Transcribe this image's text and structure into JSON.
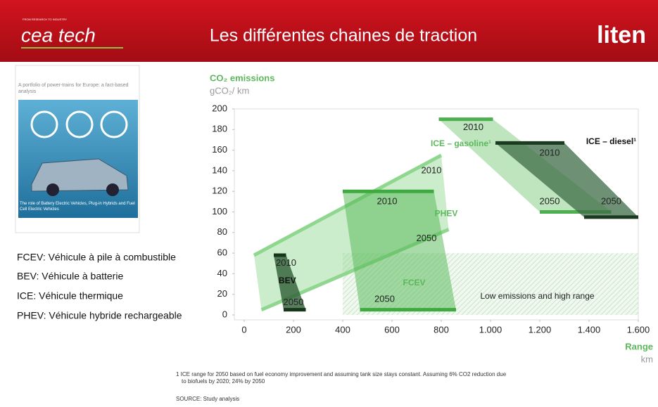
{
  "header": {
    "tagline": "FROM RESEARCH TO INDUSTRY",
    "logo_left": "cea tech",
    "title": "Les différentes chaines de traction",
    "logo_right": "liten"
  },
  "cover": {
    "title": "A portfolio of power-trains for Europe: a fact-based analysis",
    "subtitle": "The role of Battery Electric Vehicles, Plug-in Hybrids and Fuel Cell Electric Vehicles"
  },
  "definitions": [
    "FCEV: Véhicule à pile à combustible",
    "BEV: Véhicule à batterie",
    "ICE: Véhicule thermique",
    "PHEV: Véhicule hybride rechargeable"
  ],
  "chart_data": {
    "type": "polygon",
    "y_label": "CO₂ emissions",
    "y_unit": "gCO₂/ km",
    "x_label": "Range",
    "x_unit": "km",
    "xlim": [
      -40,
      1600
    ],
    "xticks": [
      0,
      200,
      400,
      600,
      800,
      {
        "value": 1000,
        "label": "1.000"
      },
      {
        "value": 1200,
        "label": "1.200"
      },
      {
        "value": 1400,
        "label": "1.400"
      },
      {
        "value": 1600,
        "label": "1.600"
      }
    ],
    "ylim": [
      0,
      200
    ],
    "yticks": [
      0,
      20,
      40,
      60,
      80,
      100,
      120,
      140,
      160,
      180,
      200
    ],
    "series": [
      {
        "name": "Low emissions and high range",
        "hatch": true,
        "color": "#9bcf9b",
        "opacity": 0.55,
        "x": [
          400,
          1600,
          1600,
          400
        ],
        "y": [
          0,
          0,
          60,
          60
        ],
        "label_x": 1190,
        "label_y": 18
      },
      {
        "name": "PHEV",
        "color": "#8fd68f",
        "edge_color": "#8fd68f",
        "opacity": 0.45,
        "x": [
          40,
          800,
          830,
          70
        ],
        "y": [
          58,
          155,
          83,
          5
        ],
        "label_x": 820,
        "label_y": 98
      },
      {
        "name": "FCEV",
        "color": "#52b852",
        "edge_color": "#3faa3f",
        "opacity": 0.5,
        "x": [
          400,
          770,
          860,
          470
        ],
        "y": [
          120,
          120,
          5,
          5
        ],
        "label_x": 690,
        "label_y": 31
      },
      {
        "name": "BEV",
        "color": "#2f5e36",
        "edge_color": "#17361c",
        "opacity": 0.8,
        "x": [
          120,
          170,
          250,
          160
        ],
        "y": [
          58,
          58,
          5,
          5
        ],
        "label_x": 175,
        "label_y": 33
      },
      {
        "name": "ICE – gasoline¹",
        "color": "#7dcc7d",
        "edge_color": "#4caf50",
        "opacity": 0.5,
        "x": [
          790,
          1010,
          1490,
          1200
        ],
        "y": [
          190,
          190,
          100,
          100
        ],
        "label_x": 880,
        "label_y": 166
      },
      {
        "name": "ICE – diesel¹",
        "color": "#3d6b45",
        "edge_color": "#1b3a20",
        "opacity": 0.75,
        "x": [
          1020,
          1300,
          1600,
          1380
        ],
        "y": [
          167,
          167,
          95,
          95
        ],
        "label_x": 1490,
        "label_y": 168
      }
    ],
    "annotations": [
      {
        "text": "2010",
        "x": 170,
        "y": 50
      },
      {
        "text": "2050",
        "x": 200,
        "y": 12
      },
      {
        "text": "2010",
        "x": 580,
        "y": 110
      },
      {
        "text": "2050",
        "x": 570,
        "y": 15
      },
      {
        "text": "2010",
        "x": 760,
        "y": 140
      },
      {
        "text": "2050",
        "x": 740,
        "y": 74
      },
      {
        "text": "2010",
        "x": 930,
        "y": 182
      },
      {
        "text": "2050",
        "x": 1240,
        "y": 110
      },
      {
        "text": "2010",
        "x": 1240,
        "y": 157
      },
      {
        "text": "2050",
        "x": 1490,
        "y": 110
      }
    ]
  },
  "footnote": [
    "1 ICE range for 2050 based on fuel economy improvement and assuming tank size stays constant. Assuming 6% CO2 reduction due",
    "to biofuels by 2020; 24% by 2050"
  ],
  "source": "SOURCE: Study analysis"
}
